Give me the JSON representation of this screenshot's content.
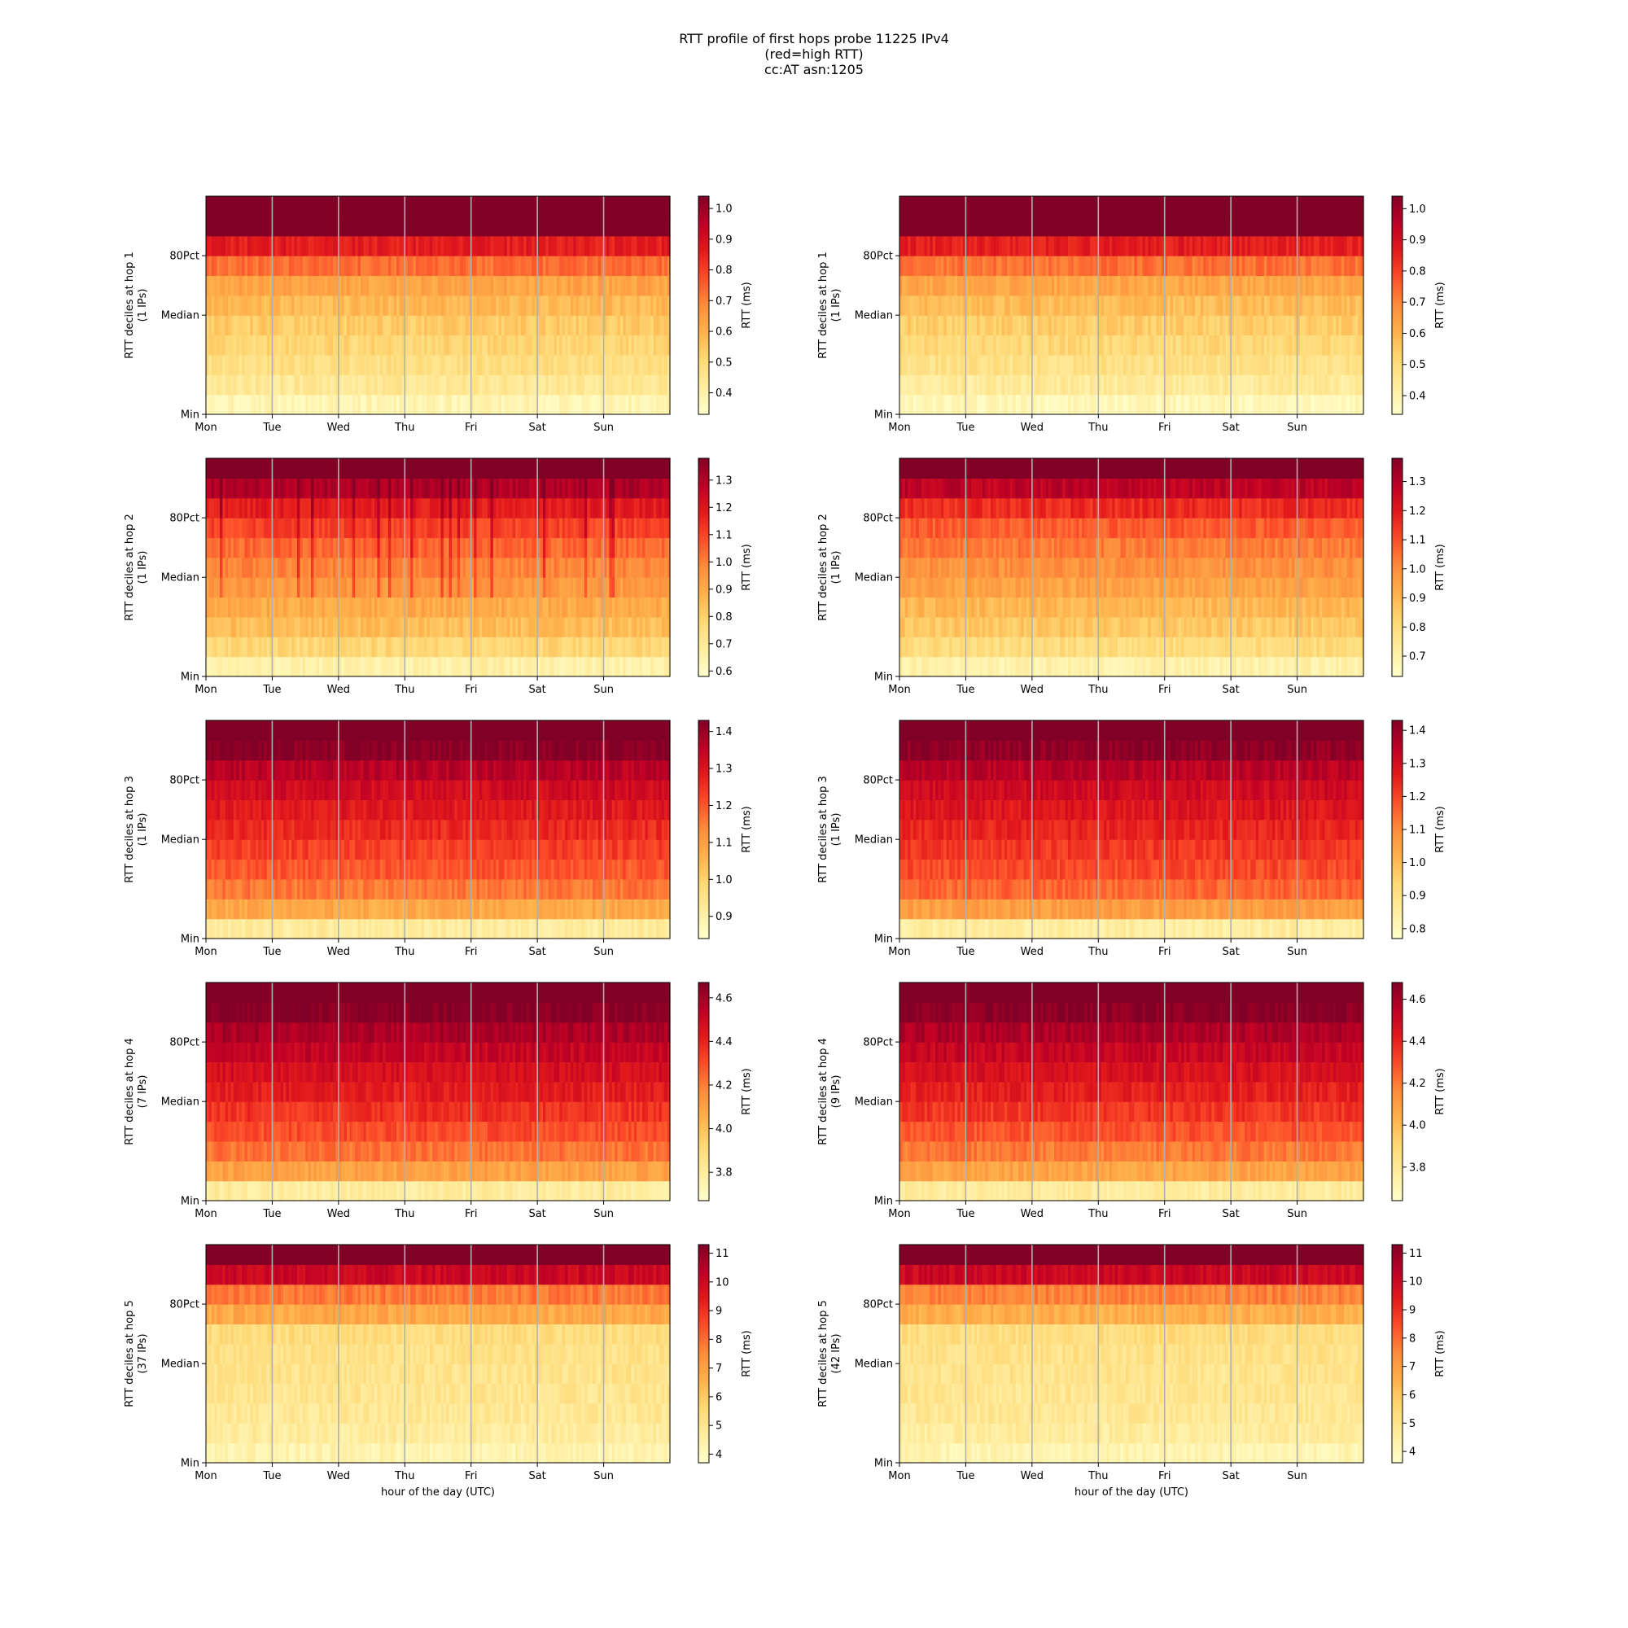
{
  "title_lines": [
    "RTT profile of first hops probe 11225 IPv4",
    "(red=high RTT)",
    "cc:AT asn:1205"
  ],
  "chart_data": [
    {
      "type": "heatmap",
      "hop": 1,
      "ylabel": "RTT deciles at hop 1",
      "ylabel_sub": "(1 IPs)",
      "x_ticks": [
        "Mon",
        "Tue",
        "Wed",
        "Thu",
        "Fri",
        "Sat",
        "Sun"
      ],
      "y_ticks": [
        "Min",
        "Median",
        "80Pct"
      ],
      "xlabel": "",
      "colorbar_label": "RTT (ms)",
      "colorbar_range": [
        0.33,
        1.04
      ],
      "colorbar_ticks": [
        0.4,
        0.5,
        0.6,
        0.7,
        0.8,
        0.9,
        1.0
      ],
      "colorbar_tick_labels": [
        "0.4",
        "0.5",
        "0.6",
        "0.7",
        "0.8",
        "0.9",
        "1.0"
      ],
      "decile_levels": [
        0.38,
        0.44,
        0.48,
        0.51,
        0.54,
        0.58,
        0.63,
        0.73,
        0.86,
        1.2,
        1.35
      ]
    },
    {
      "type": "heatmap",
      "hop": 1,
      "ylabel": "RTT deciles at hop 1",
      "ylabel_sub": "(1 IPs)",
      "x_ticks": [
        "Mon",
        "Tue",
        "Wed",
        "Thu",
        "Fri",
        "Sat",
        "Sun"
      ],
      "y_ticks": [
        "Min",
        "Median",
        "80Pct"
      ],
      "xlabel": "",
      "colorbar_label": "RTT (ms)",
      "colorbar_range": [
        0.34,
        1.04
      ],
      "colorbar_ticks": [
        0.4,
        0.5,
        0.6,
        0.7,
        0.8,
        0.9,
        1.0
      ],
      "colorbar_tick_labels": [
        "0.4",
        "0.5",
        "0.6",
        "0.7",
        "0.8",
        "0.9",
        "1.0"
      ],
      "decile_levels": [
        0.38,
        0.44,
        0.48,
        0.51,
        0.54,
        0.58,
        0.63,
        0.73,
        0.86,
        1.2,
        1.35
      ]
    },
    {
      "type": "heatmap",
      "hop": 2,
      "ylabel": "RTT deciles at hop 2",
      "ylabel_sub": "(1 IPs)",
      "x_ticks": [
        "Mon",
        "Tue",
        "Wed",
        "Thu",
        "Fri",
        "Sat",
        "Sun"
      ],
      "y_ticks": [
        "Min",
        "Median",
        "80Pct"
      ],
      "xlabel": "",
      "colorbar_label": "RTT (ms)",
      "colorbar_range": [
        0.58,
        1.38
      ],
      "colorbar_ticks": [
        0.6,
        0.7,
        0.8,
        0.9,
        1.0,
        1.1,
        1.2,
        1.3
      ],
      "colorbar_tick_labels": [
        "0.6",
        "0.7",
        "0.8",
        "0.9",
        "1.0",
        "1.1",
        "1.2",
        "1.3"
      ],
      "decile_levels": [
        0.66,
        0.78,
        0.85,
        0.9,
        0.95,
        0.99,
        1.04,
        1.1,
        1.18,
        1.3,
        1.6
      ]
    },
    {
      "type": "heatmap",
      "hop": 2,
      "ylabel": "RTT deciles at hop 2",
      "ylabel_sub": "(1 IPs)",
      "x_ticks": [
        "Mon",
        "Tue",
        "Wed",
        "Thu",
        "Fri",
        "Sat",
        "Sun"
      ],
      "y_ticks": [
        "Min",
        "Median",
        "80Pct"
      ],
      "xlabel": "",
      "colorbar_label": "RTT (ms)",
      "colorbar_range": [
        0.63,
        1.38
      ],
      "colorbar_ticks": [
        0.7,
        0.8,
        0.9,
        1.0,
        1.1,
        1.2,
        1.3
      ],
      "colorbar_tick_labels": [
        "0.7",
        "0.8",
        "0.9",
        "1.0",
        "1.1",
        "1.2",
        "1.3"
      ],
      "decile_levels": [
        0.7,
        0.8,
        0.86,
        0.9,
        0.95,
        0.99,
        1.03,
        1.08,
        1.16,
        1.28,
        1.6
      ]
    },
    {
      "type": "heatmap",
      "hop": 3,
      "ylabel": "RTT deciles at hop 3",
      "ylabel_sub": "(1 IPs)",
      "x_ticks": [
        "Mon",
        "Tue",
        "Wed",
        "Thu",
        "Fri",
        "Sat",
        "Sun"
      ],
      "y_ticks": [
        "Min",
        "Median",
        "80Pct"
      ],
      "xlabel": "",
      "colorbar_label": "RTT (ms)",
      "colorbar_range": [
        0.84,
        1.43
      ],
      "colorbar_ticks": [
        0.9,
        1.0,
        1.1,
        1.2,
        1.3,
        1.4
      ],
      "colorbar_tick_labels": [
        "0.9",
        "1.0",
        "1.1",
        "1.2",
        "1.3",
        "1.4"
      ],
      "decile_levels": [
        0.92,
        1.08,
        1.16,
        1.2,
        1.23,
        1.26,
        1.29,
        1.32,
        1.36,
        1.42,
        1.6
      ]
    },
    {
      "type": "heatmap",
      "hop": 3,
      "ylabel": "RTT deciles at hop 3",
      "ylabel_sub": "(1 IPs)",
      "x_ticks": [
        "Mon",
        "Tue",
        "Wed",
        "Thu",
        "Fri",
        "Sat",
        "Sun"
      ],
      "y_ticks": [
        "Min",
        "Median",
        "80Pct"
      ],
      "xlabel": "",
      "colorbar_label": "RTT (ms)",
      "colorbar_range": [
        0.77,
        1.43
      ],
      "colorbar_ticks": [
        0.8,
        0.9,
        1.0,
        1.1,
        1.2,
        1.3,
        1.4
      ],
      "colorbar_tick_labels": [
        "0.8",
        "0.9",
        "1.0",
        "1.1",
        "1.2",
        "1.3",
        "1.4"
      ],
      "decile_levels": [
        0.85,
        1.06,
        1.15,
        1.19,
        1.22,
        1.25,
        1.28,
        1.31,
        1.35,
        1.41,
        1.6
      ]
    },
    {
      "type": "heatmap",
      "hop": 4,
      "ylabel": "RTT deciles at hop 4",
      "ylabel_sub": "(7 IPs)",
      "x_ticks": [
        "Mon",
        "Tue",
        "Wed",
        "Thu",
        "Fri",
        "Sat",
        "Sun"
      ],
      "y_ticks": [
        "Min",
        "Median",
        "80Pct"
      ],
      "xlabel": "",
      "colorbar_label": "RTT (ms)",
      "colorbar_range": [
        3.67,
        4.67
      ],
      "colorbar_ticks": [
        3.8,
        4.0,
        4.2,
        4.4,
        4.6
      ],
      "colorbar_tick_labels": [
        "3.8",
        "4.0",
        "4.2",
        "4.4",
        "4.6"
      ],
      "decile_levels": [
        3.8,
        4.1,
        4.22,
        4.3,
        4.36,
        4.42,
        4.47,
        4.52,
        4.58,
        4.66,
        5.0
      ]
    },
    {
      "type": "heatmap",
      "hop": 4,
      "ylabel": "RTT deciles at hop 4",
      "ylabel_sub": "(9 IPs)",
      "x_ticks": [
        "Mon",
        "Tue",
        "Wed",
        "Thu",
        "Fri",
        "Sat",
        "Sun"
      ],
      "y_ticks": [
        "Min",
        "Median",
        "80Pct"
      ],
      "xlabel": "",
      "colorbar_label": "RTT (ms)",
      "colorbar_range": [
        3.64,
        4.68
      ],
      "colorbar_ticks": [
        3.8,
        4.0,
        4.2,
        4.4,
        4.6
      ],
      "colorbar_tick_labels": [
        "3.8",
        "4.0",
        "4.2",
        "4.4",
        "4.6"
      ],
      "decile_levels": [
        3.78,
        4.08,
        4.2,
        4.28,
        4.35,
        4.41,
        4.46,
        4.52,
        4.58,
        4.66,
        5.0
      ]
    },
    {
      "type": "heatmap",
      "hop": 5,
      "ylabel": "RTT deciles at hop 5",
      "ylabel_sub": "(37 IPs)",
      "x_ticks": [
        "Mon",
        "Tue",
        "Wed",
        "Thu",
        "Fri",
        "Sat",
        "Sun"
      ],
      "y_ticks": [
        "Min",
        "Median",
        "80Pct"
      ],
      "xlabel": "hour of the day (UTC)",
      "colorbar_label": "RTT (ms)",
      "colorbar_range": [
        3.7,
        11.3
      ],
      "colorbar_ticks": [
        4,
        5,
        6,
        7,
        8,
        9,
        10,
        11
      ],
      "colorbar_tick_labels": [
        "4",
        "5",
        "6",
        "7",
        "8",
        "9",
        "10",
        "11"
      ],
      "decile_levels": [
        4.3,
        4.7,
        4.9,
        5.0,
        5.1,
        5.2,
        5.4,
        6.8,
        7.8,
        10.0,
        14.0
      ]
    },
    {
      "type": "heatmap",
      "hop": 5,
      "ylabel": "RTT deciles at hop 5",
      "ylabel_sub": "(42 IPs)",
      "x_ticks": [
        "Mon",
        "Tue",
        "Wed",
        "Thu",
        "Fri",
        "Sat",
        "Sun"
      ],
      "y_ticks": [
        "Min",
        "Median",
        "80Pct"
      ],
      "xlabel": "hour of the day (UTC)",
      "colorbar_label": "RTT (ms)",
      "colorbar_range": [
        3.6,
        11.3
      ],
      "colorbar_ticks": [
        4,
        5,
        6,
        7,
        8,
        9,
        10,
        11
      ],
      "colorbar_tick_labels": [
        "4",
        "5",
        "6",
        "7",
        "8",
        "9",
        "10",
        "11"
      ],
      "decile_levels": [
        4.2,
        4.6,
        4.8,
        4.9,
        5.0,
        5.1,
        5.3,
        6.6,
        7.6,
        10.0,
        14.0
      ]
    }
  ]
}
